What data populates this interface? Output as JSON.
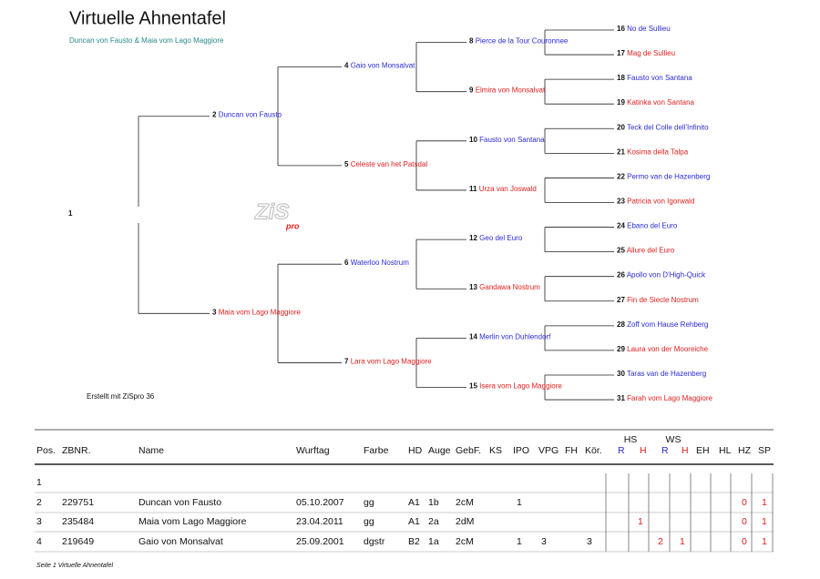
{
  "header": {
    "title": "Virtuelle Ahnentafel",
    "subtitle": "Duncan von Fausto & Maia vom Lago Maggiore"
  },
  "logo": {
    "main": "ZiS",
    "sub": "pro"
  },
  "colors": {
    "male": "#2b2bd6",
    "female": "#e0201f"
  },
  "pedigree": {
    "nodes": [
      {
        "no": "1"
      },
      {
        "no": "2",
        "name": "Duncan von Fausto"
      },
      {
        "no": "3",
        "name": "Maia vom Lago Maggiore"
      },
      {
        "no": "4",
        "name": "Gaio von Monsalvat"
      },
      {
        "no": "5",
        "name": "Celeste van het Patsdal"
      },
      {
        "no": "6",
        "name": "Waterloo  Nostrum"
      },
      {
        "no": "7",
        "name": "Lara vom Lago Maggiore"
      },
      {
        "no": "8",
        "name": "Pierce de la Tour Couronnee"
      },
      {
        "no": "9",
        "name": "Elmira von Monsalvat"
      },
      {
        "no": "10",
        "name": "Fausto von Santana"
      },
      {
        "no": "11",
        "name": "Urza van Joswald"
      },
      {
        "no": "12",
        "name": "Geo del Euro"
      },
      {
        "no": "13",
        "name": "Gandawa  Nostrum"
      },
      {
        "no": "14",
        "name": "Merlin von Duhlendorf"
      },
      {
        "no": "15",
        "name": "Isera vom Lago Maggiore"
      },
      {
        "no": "16",
        "name": "No de Sullieu"
      },
      {
        "no": "17",
        "name": "Mag de Sullieu"
      },
      {
        "no": "18",
        "name": "Fausto von Santana"
      },
      {
        "no": "19",
        "name": "Katinka von Santana"
      },
      {
        "no": "20",
        "name": "Teck del Colle dell'Infinito"
      },
      {
        "no": "21",
        "name": "Kosima della Talpa"
      },
      {
        "no": "22",
        "name": "Permo van de Hazenberg"
      },
      {
        "no": "23",
        "name": "Patricia von Igorwald"
      },
      {
        "no": "24",
        "name": "Ebano del Euro"
      },
      {
        "no": "25",
        "name": "Allure del Euro"
      },
      {
        "no": "26",
        "name": "Apollo von D'High-Quick"
      },
      {
        "no": "27",
        "name": "Fin de Siecle  Nostrum"
      },
      {
        "no": "28",
        "name": "Zoff vom Hause Rehberg"
      },
      {
        "no": "29",
        "name": "Laura von der Mooreiche"
      },
      {
        "no": "30",
        "name": "Taras van de Hazenberg"
      },
      {
        "no": "31",
        "name": "Farah vom Lago Maggiore"
      }
    ]
  },
  "created_note": "Erstellt mit ZiSpro 36",
  "table": {
    "group_headers": [
      "HS",
      "WS"
    ],
    "headers": [
      "Pos.",
      "ZBNR.",
      "Name",
      "Wurftag",
      "Farbe",
      "HD",
      "Auge",
      "GebF.",
      "KS",
      "IPO",
      "VPG",
      "FH",
      "Kör.",
      "R",
      "H",
      "R",
      "H",
      "EH",
      "HL",
      "HZ",
      "SP"
    ],
    "rows": [
      [
        "1",
        null,
        null,
        null,
        null,
        null,
        null,
        null,
        null,
        null,
        null,
        null,
        null,
        null,
        null,
        null,
        null,
        null,
        null,
        null,
        null
      ],
      [
        "2",
        "229751",
        "Duncan von Fausto",
        "05.10.2007",
        "gg",
        "A1",
        "1b",
        "2cM",
        null,
        "1",
        null,
        null,
        null,
        null,
        null,
        null,
        null,
        null,
        null,
        "0",
        "1"
      ],
      [
        "3",
        "235484",
        "Maia vom Lago Maggiore",
        "23.04.2011",
        "gg",
        "A1",
        "2a",
        "2dM",
        null,
        null,
        null,
        null,
        null,
        null,
        "1",
        null,
        null,
        null,
        null,
        "0",
        "1"
      ],
      [
        "4",
        "219649",
        "Gaio von Monsalvat",
        "25.09.2001",
        "dgstr",
        "B2",
        "1a",
        "2cM",
        null,
        "1",
        "3",
        null,
        "3",
        null,
        null,
        "2",
        "1",
        null,
        null,
        "0",
        "1"
      ]
    ]
  },
  "footer": "Seite 1  Virtuelle Ahnentafel"
}
